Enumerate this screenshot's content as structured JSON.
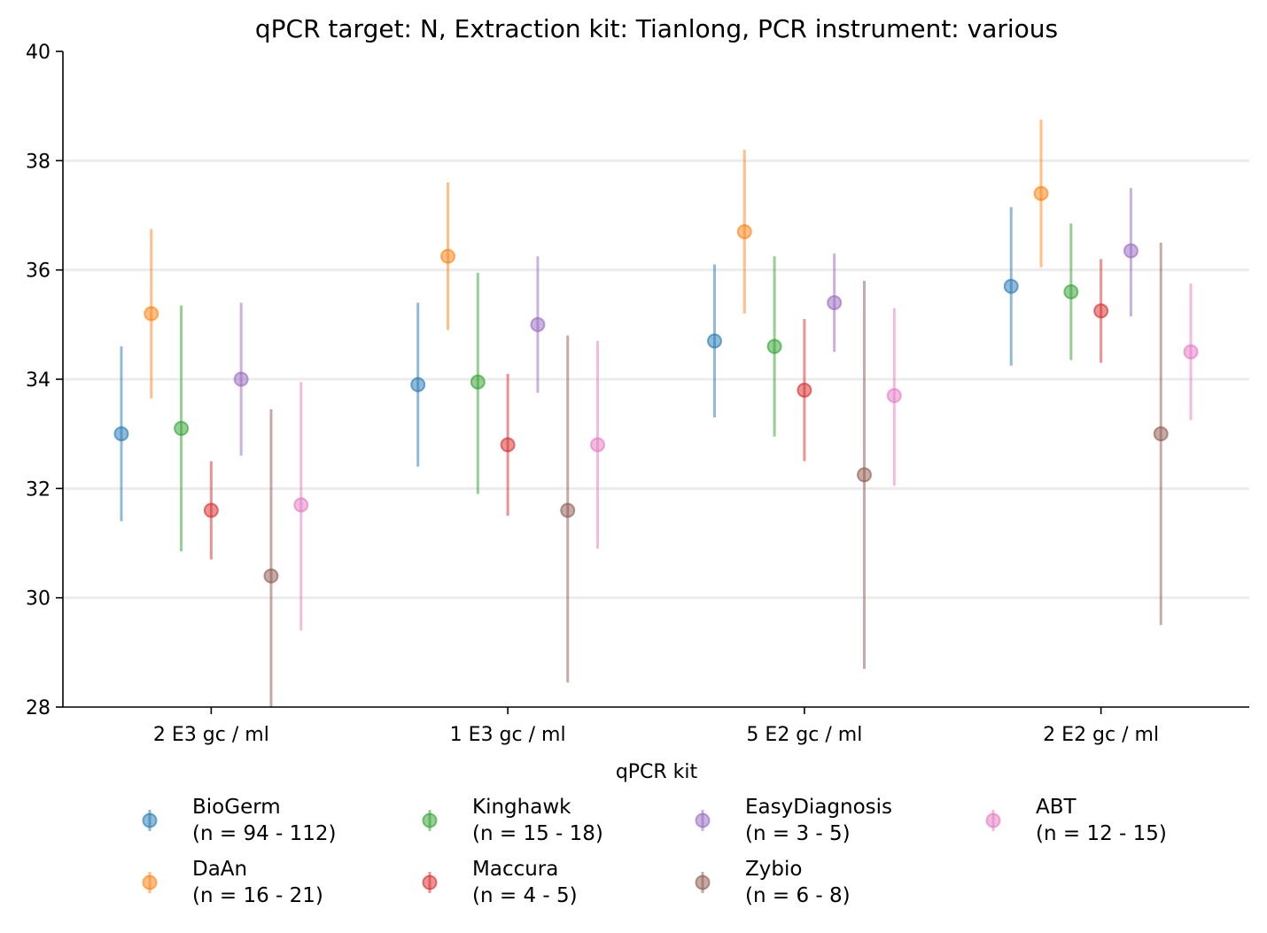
{
  "chart_data": {
    "type": "scatter",
    "title": "qPCR target: N, Extraction kit: Tianlong, PCR instrument: various",
    "xlabel": "qPCR kit",
    "ylabel": "",
    "categories": [
      "2 E3 gc / ml",
      "1 E3 gc / ml",
      "5 E2 gc / ml",
      "2 E2 gc / ml"
    ],
    "ylim": [
      28,
      40
    ],
    "yticks": [
      "28",
      "30",
      "32",
      "34",
      "36",
      "38",
      "40"
    ],
    "grid": "horizontal",
    "legend_position": "bottom",
    "series": [
      {
        "name": "BioGerm",
        "note": "(n = 94 - 112)",
        "color": "#1f77b4",
        "values": [
          33.0,
          33.9,
          34.7,
          35.7
        ],
        "lower": [
          31.4,
          32.4,
          33.3,
          34.25
        ],
        "upper": [
          34.6,
          35.4,
          36.1,
          37.15
        ]
      },
      {
        "name": "DaAn",
        "note": "(n = 16 - 21)",
        "color": "#ff7f0e",
        "values": [
          35.2,
          36.25,
          36.7,
          37.4
        ],
        "lower": [
          33.65,
          34.9,
          35.2,
          36.05
        ],
        "upper": [
          36.75,
          37.6,
          38.2,
          38.75
        ]
      },
      {
        "name": "Kinghawk",
        "note": "(n = 15 - 18)",
        "color": "#2ca02c",
        "values": [
          33.1,
          33.95,
          34.6,
          35.6
        ],
        "lower": [
          30.85,
          31.9,
          32.95,
          34.35
        ],
        "upper": [
          35.35,
          35.95,
          36.25,
          36.85
        ]
      },
      {
        "name": "Maccura",
        "note": "(n = 4 - 5)",
        "color": "#d62728",
        "values": [
          31.6,
          32.8,
          33.8,
          35.25
        ],
        "lower": [
          30.7,
          31.5,
          32.5,
          34.3
        ],
        "upper": [
          32.5,
          34.1,
          35.1,
          36.2
        ]
      },
      {
        "name": "EasyDiagnosis",
        "note": "(n = 3 - 5)",
        "color": "#9467bd",
        "values": [
          34.0,
          35.0,
          35.4,
          36.35
        ],
        "lower": [
          32.6,
          33.75,
          34.5,
          35.15
        ],
        "upper": [
          35.4,
          36.25,
          36.3,
          37.5
        ]
      },
      {
        "name": "Zybio",
        "note": "(n = 6 - 8)",
        "color": "#8c564b",
        "values": [
          30.4,
          31.6,
          32.25,
          33.0
        ],
        "lower": [
          27.9,
          28.45,
          28.7,
          29.5
        ],
        "upper": [
          33.45,
          34.8,
          35.8,
          36.5
        ]
      },
      {
        "name": "ABT",
        "note": "(n = 12 - 15)",
        "color": "#e377c2",
        "values": [
          31.7,
          32.8,
          33.7,
          34.5
        ],
        "lower": [
          29.4,
          30.9,
          32.05,
          33.25
        ],
        "upper": [
          33.95,
          34.7,
          35.3,
          35.75
        ]
      }
    ],
    "legend_order": [
      "BioGerm",
      "DaAn",
      "Kinghawk",
      "Maccura",
      "EasyDiagnosis",
      "Zybio",
      "ABT"
    ]
  }
}
